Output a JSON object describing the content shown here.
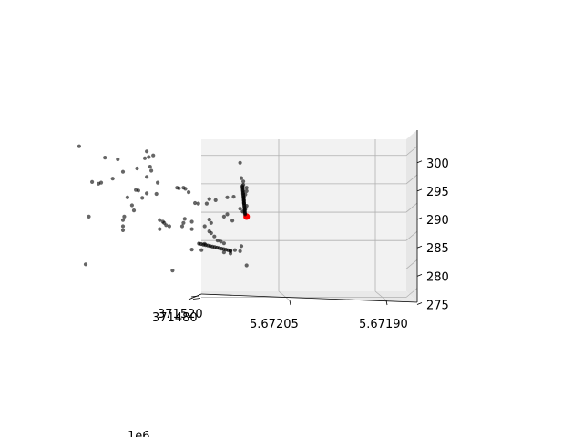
{
  "chart_data": {
    "type": "scatter3d",
    "x_ticks": [
      "371480",
      "371520"
    ],
    "y_ticks": [
      "5.67205",
      "5.67190"
    ],
    "y_offset_label": "1e6",
    "z_ticks": [
      "275",
      "280",
      "285",
      "290",
      "295",
      "300"
    ],
    "zlim": [
      275,
      303
    ],
    "grid": true,
    "colors": {
      "point": "#000000",
      "highlight": "#ff0000",
      "pane": "#f2f2f2",
      "grid": "#b0b0b0"
    },
    "series": [
      {
        "name": "",
        "points": [
          [
            5.672135,
            290.5
          ],
          [
            5.672135,
            284.2
          ],
          [
            5.672125,
            284.4
          ],
          [
            5.672125,
            284.0
          ],
          [
            5.672118,
            284.6
          ],
          [
            5.67211,
            284.4
          ],
          [
            5.672108,
            285.3
          ],
          [
            5.6721,
            281.9
          ],
          [
            5.67212,
            294.0
          ],
          [
            5.67213,
            293.9
          ],
          [
            5.67211,
            300.0
          ],
          [
            5.672108,
            297.3
          ],
          [
            5.672105,
            296.7
          ],
          [
            5.672105,
            296.1
          ],
          [
            5.6721,
            295.6
          ],
          [
            5.6721,
            295.0
          ],
          [
            5.672102,
            294.4
          ],
          [
            5.672104,
            293.9
          ],
          [
            5.672104,
            293.4
          ],
          [
            5.672104,
            292.9
          ],
          [
            5.6721,
            292.4
          ],
          [
            5.672102,
            291.8
          ],
          [
            5.672106,
            291.4
          ],
          [
            5.67211,
            291.9
          ],
          [
            5.672122,
            289.8
          ],
          [
            5.67213,
            290.9
          ],
          [
            5.672158,
            290.0
          ],
          [
            5.672155,
            289.4
          ],
          [
            5.672155,
            287.6
          ],
          [
            5.67215,
            287.0
          ],
          [
            5.672145,
            286.3
          ],
          [
            5.67214,
            286.1
          ],
          [
            5.672135,
            285.8
          ],
          [
            5.672158,
            287.9
          ],
          [
            5.672165,
            288.8
          ],
          [
            5.672148,
            293.4
          ],
          [
            5.672162,
            292.8
          ],
          [
            5.672175,
            292.8
          ],
          [
            5.67218,
            292.9
          ],
          [
            5.672185,
            289.6
          ],
          [
            5.67219,
            294.8
          ],
          [
            5.672195,
            295.4
          ],
          [
            5.672198,
            295.6
          ],
          [
            5.672196,
            290.1
          ],
          [
            5.672198,
            289.4
          ],
          [
            5.6722,
            288.8
          ],
          [
            5.672158,
            293.6
          ],
          [
            5.672165,
            285.7
          ],
          [
            5.67217,
            284.6
          ],
          [
            5.672185,
            284.7
          ],
          [
            5.672215,
            281.0
          ],
          [
            5.672185,
            288.3
          ],
          [
            5.672205,
            295.5
          ],
          [
            5.672208,
            295.6
          ],
          [
            5.67222,
            288.8
          ],
          [
            5.672225,
            289.0
          ],
          [
            5.672228,
            289.4
          ],
          [
            5.67223,
            289.6
          ],
          [
            5.672235,
            289.9
          ],
          [
            5.672235,
            288.3
          ],
          [
            5.67224,
            294.5
          ],
          [
            5.672238,
            296.5
          ],
          [
            5.672245,
            301.3
          ],
          [
            5.672248,
            298.6
          ],
          [
            5.67225,
            299.3
          ],
          [
            5.672252,
            301.0
          ],
          [
            5.672255,
            302.0
          ],
          [
            5.672258,
            300.8
          ],
          [
            5.672255,
            297.5
          ],
          [
            5.672255,
            294.6
          ],
          [
            5.672262,
            293.8
          ],
          [
            5.672268,
            295.1
          ],
          [
            5.67227,
            299.0
          ],
          [
            5.672272,
            295.2
          ],
          [
            5.672275,
            291.6
          ],
          [
            5.672278,
            292.5
          ],
          [
            5.672285,
            293.9
          ],
          [
            5.672292,
            289.9
          ],
          [
            5.672292,
            288.8
          ],
          [
            5.672292,
            288.1
          ],
          [
            5.67229,
            290.5
          ],
          [
            5.672292,
            298.4
          ],
          [
            5.6723,
            300.6
          ],
          [
            5.672308,
            297.2
          ],
          [
            5.67232,
            300.9
          ],
          [
            5.672326,
            296.5
          ],
          [
            5.67233,
            296.3
          ],
          [
            5.67234,
            296.6
          ],
          [
            5.672345,
            290.5
          ],
          [
            5.67235,
            282.1
          ],
          [
            5.67236,
            302.9
          ]
        ]
      },
      {
        "name": "",
        "points": [
          [
            5.6721,
            290.5
          ]
        ]
      }
    ]
  }
}
